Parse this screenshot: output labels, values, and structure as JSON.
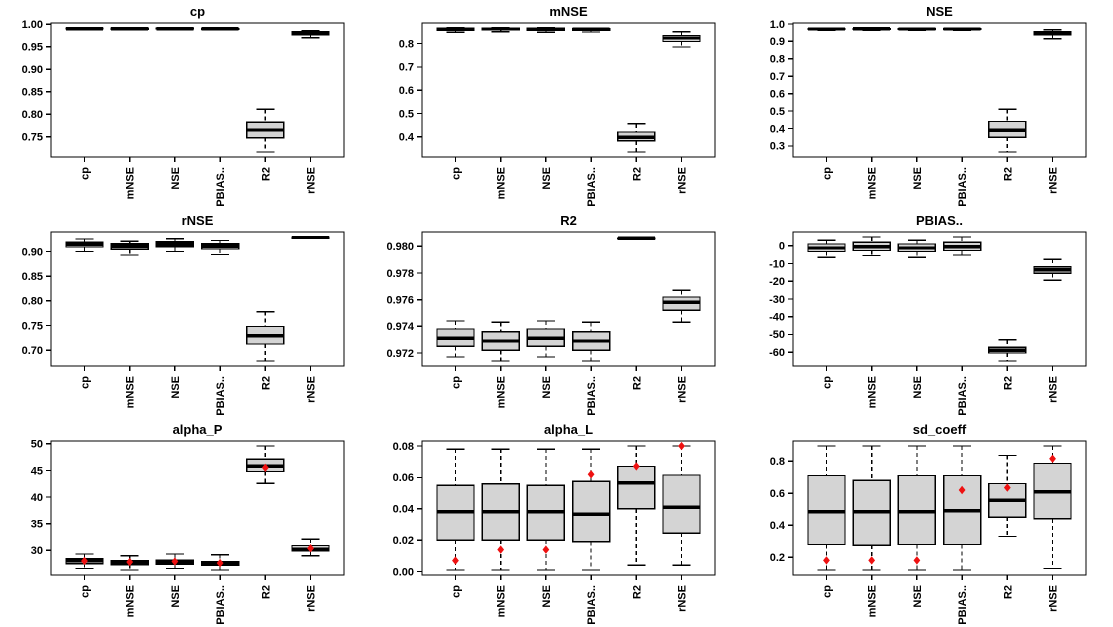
{
  "colors": {
    "background": "#ffffff",
    "box_fill": "#d4d4d4",
    "box_border": "#000000",
    "median": "#000000",
    "whisker": "#000000",
    "mean_marker": "#ee1111"
  },
  "layout_hints": {
    "grid": "3x3",
    "x_labels_rotated_90": true,
    "whisker_style": "dashed-with-caps",
    "mean_marker_shape": "filled-diamond"
  },
  "chart_data": [
    {
      "type": "boxplot",
      "title": "cp",
      "categories": [
        "cp",
        "mNSE",
        "NSE",
        "PBIAS..",
        "R2",
        "rNSE"
      ],
      "ylim": [
        0.705,
        1.0025
      ],
      "yticks": [
        {
          "value": 0.75,
          "label": "0.75"
        },
        {
          "value": 0.8,
          "label": "0.80"
        },
        {
          "value": 0.85,
          "label": "0.85"
        },
        {
          "value": 0.9,
          "label": "0.90"
        },
        {
          "value": 0.95,
          "label": "0.95"
        },
        {
          "value": 1.0,
          "label": "1.00"
        }
      ],
      "boxes": [
        {
          "low": 0.9875,
          "q1": 0.989,
          "med": 0.99,
          "q3": 0.991,
          "high": 0.992
        },
        {
          "low": 0.987,
          "q1": 0.9885,
          "med": 0.99,
          "q3": 0.991,
          "high": 0.992
        },
        {
          "low": 0.9875,
          "q1": 0.989,
          "med": 0.99,
          "q3": 0.991,
          "high": 0.992
        },
        {
          "low": 0.9875,
          "q1": 0.9885,
          "med": 0.9895,
          "q3": 0.9905,
          "high": 0.9915
        },
        {
          "low": 0.716,
          "q1": 0.748,
          "med": 0.765,
          "q3": 0.782,
          "high": 0.811
        },
        {
          "low": 0.97,
          "q1": 0.9765,
          "med": 0.98,
          "q3": 0.9835,
          "high": 0.986
        }
      ]
    },
    {
      "type": "boxplot",
      "title": "mNSE",
      "categories": [
        "cp",
        "mNSE",
        "NSE",
        "PBIAS..",
        "R2",
        "rNSE"
      ],
      "ylim": [
        0.3137,
        0.8883
      ],
      "yticks": [
        {
          "value": 0.4,
          "label": "0.4"
        },
        {
          "value": 0.5,
          "label": "0.5"
        },
        {
          "value": 0.6,
          "label": "0.6"
        },
        {
          "value": 0.7,
          "label": "0.7"
        },
        {
          "value": 0.8,
          "label": "0.8"
        }
      ],
      "boxes": [
        {
          "low": 0.849,
          "q1": 0.857,
          "med": 0.862,
          "q3": 0.8655,
          "high": 0.868
        },
        {
          "low": 0.851,
          "q1": 0.858,
          "med": 0.8625,
          "q3": 0.866,
          "high": 0.868
        },
        {
          "low": 0.849,
          "q1": 0.857,
          "med": 0.862,
          "q3": 0.8655,
          "high": 0.868
        },
        {
          "low": 0.85,
          "q1": 0.857,
          "med": 0.861,
          "q3": 0.865,
          "high": 0.867
        },
        {
          "low": 0.335,
          "q1": 0.383,
          "med": 0.398,
          "q3": 0.421,
          "high": 0.456
        },
        {
          "low": 0.785,
          "q1": 0.809,
          "med": 0.824,
          "q3": 0.835,
          "high": 0.851
        }
      ]
    },
    {
      "type": "boxplot",
      "title": "NSE",
      "categories": [
        "cp",
        "mNSE",
        "NSE",
        "PBIAS..",
        "R2",
        "rNSE"
      ],
      "ylim": [
        0.2365,
        1.0055
      ],
      "yticks": [
        {
          "value": 0.3,
          "label": "0.3"
        },
        {
          "value": 0.4,
          "label": "0.4"
        },
        {
          "value": 0.5,
          "label": "0.5"
        },
        {
          "value": 0.6,
          "label": "0.6"
        },
        {
          "value": 0.7,
          "label": "0.7"
        },
        {
          "value": 0.8,
          "label": "0.8"
        },
        {
          "value": 0.9,
          "label": "0.9"
        },
        {
          "value": 1.0,
          "label": "1.0"
        }
      ],
      "boxes": [
        {
          "low": 0.962,
          "q1": 0.968,
          "med": 0.971,
          "q3": 0.974,
          "high": 0.977
        },
        {
          "low": 0.963,
          "q1": 0.9685,
          "med": 0.9715,
          "q3": 0.9745,
          "high": 0.977
        },
        {
          "low": 0.962,
          "q1": 0.968,
          "med": 0.971,
          "q3": 0.974,
          "high": 0.977
        },
        {
          "low": 0.963,
          "q1": 0.968,
          "med": 0.971,
          "q3": 0.974,
          "high": 0.9765
        },
        {
          "low": 0.265,
          "q1": 0.35,
          "med": 0.39,
          "q3": 0.44,
          "high": 0.51
        },
        {
          "low": 0.915,
          "q1": 0.937,
          "med": 0.948,
          "q3": 0.955,
          "high": 0.966
        }
      ]
    },
    {
      "type": "boxplot",
      "title": "rNSE",
      "categories": [
        "cp",
        "mNSE",
        "NSE",
        "PBIAS..",
        "R2",
        "rNSE"
      ],
      "ylim": [
        0.6679,
        0.9396
      ],
      "yticks": [
        {
          "value": 0.7,
          "label": "0.70"
        },
        {
          "value": 0.75,
          "label": "0.75"
        },
        {
          "value": 0.8,
          "label": "0.80"
        },
        {
          "value": 0.85,
          "label": "0.85"
        },
        {
          "value": 0.9,
          "label": "0.90"
        }
      ],
      "boxes": [
        {
          "low": 0.9,
          "q1": 0.909,
          "med": 0.9145,
          "q3": 0.919,
          "high": 0.9255
        },
        {
          "low": 0.893,
          "q1": 0.9045,
          "med": 0.9105,
          "q3": 0.916,
          "high": 0.921
        },
        {
          "low": 0.9,
          "q1": 0.9095,
          "med": 0.915,
          "q3": 0.92,
          "high": 0.926
        },
        {
          "low": 0.894,
          "q1": 0.905,
          "med": 0.911,
          "q3": 0.9155,
          "high": 0.9225
        },
        {
          "low": 0.678,
          "q1": 0.7125,
          "med": 0.729,
          "q3": 0.748,
          "high": 0.778
        },
        {
          "low": 0.9275,
          "q1": 0.928,
          "med": 0.9285,
          "q3": 0.929,
          "high": 0.9295
        }
      ]
    },
    {
      "type": "boxplot",
      "title": "R2",
      "categories": [
        "cp",
        "mNSE",
        "NSE",
        "PBIAS..",
        "R2",
        "rNSE"
      ],
      "ylim": [
        0.97103,
        0.98107
      ],
      "yticks": [
        {
          "value": 0.972,
          "label": "0.972"
        },
        {
          "value": 0.974,
          "label": "0.974"
        },
        {
          "value": 0.976,
          "label": "0.976"
        },
        {
          "value": 0.978,
          "label": "0.978"
        },
        {
          "value": 0.98,
          "label": "0.980"
        }
      ],
      "boxes": [
        {
          "low": 0.9717,
          "q1": 0.9725,
          "med": 0.9731,
          "q3": 0.9738,
          "high": 0.9744
        },
        {
          "low": 0.9714,
          "q1": 0.9722,
          "med": 0.9729,
          "q3": 0.9736,
          "high": 0.9743
        },
        {
          "low": 0.9717,
          "q1": 0.9725,
          "med": 0.9731,
          "q3": 0.9738,
          "high": 0.9744
        },
        {
          "low": 0.9714,
          "q1": 0.9722,
          "med": 0.9729,
          "q3": 0.9736,
          "high": 0.9743
        },
        {
          "low": 0.98055,
          "q1": 0.98058,
          "med": 0.9806,
          "q3": 0.98062,
          "high": 0.98065
        },
        {
          "low": 0.9743,
          "q1": 0.9752,
          "med": 0.9758,
          "q3": 0.9762,
          "high": 0.9767
        }
      ]
    },
    {
      "type": "boxplot",
      "title": "PBIAS..",
      "categories": [
        "cp",
        "mNSE",
        "NSE",
        "PBIAS..",
        "R2",
        "rNSE"
      ],
      "ylim": [
        -67.8,
        7.8
      ],
      "yticks": [
        {
          "value": 0,
          "label": "0"
        },
        {
          "value": -10,
          "label": "-10"
        },
        {
          "value": -20,
          "label": "-20"
        },
        {
          "value": -30,
          "label": "-30"
        },
        {
          "value": -40,
          "label": "-40"
        },
        {
          "value": -50,
          "label": "-50"
        },
        {
          "value": -60,
          "label": "-60"
        }
      ],
      "boxes": [
        {
          "low": -6.5,
          "q1": -3.2,
          "med": -1.2,
          "q3": 1.0,
          "high": 3.2
        },
        {
          "low": -5.5,
          "q1": -2.6,
          "med": -0.6,
          "q3": 2.0,
          "high": 5.0
        },
        {
          "low": -6.5,
          "q1": -3.2,
          "med": -1.2,
          "q3": 1.0,
          "high": 3.2
        },
        {
          "low": -5.2,
          "q1": -2.6,
          "med": -0.5,
          "q3": 2.0,
          "high": 5.0
        },
        {
          "low": -65.0,
          "q1": -60.5,
          "med": -59.0,
          "q3": -57.3,
          "high": -53.0
        },
        {
          "low": -19.5,
          "q1": -15.5,
          "med": -13.5,
          "q3": -11.8,
          "high": -7.5
        }
      ]
    },
    {
      "type": "boxplot",
      "title": "alpha_P",
      "categories": [
        "cp",
        "mNSE",
        "NSE",
        "PBIAS..",
        "R2",
        "rNSE"
      ],
      "ylim": [
        25.37,
        50.53
      ],
      "yticks": [
        {
          "value": 30,
          "label": "30"
        },
        {
          "value": 35,
          "label": "35"
        },
        {
          "value": 40,
          "label": "40"
        },
        {
          "value": 45,
          "label": "45"
        },
        {
          "value": 50,
          "label": "50"
        }
      ],
      "boxes": [
        {
          "low": 26.6,
          "q1": 27.5,
          "med": 28.0,
          "q3": 28.4,
          "high": 29.3,
          "mean": 28.0
        },
        {
          "low": 26.3,
          "q1": 27.3,
          "med": 27.7,
          "q3": 28.1,
          "high": 29.0,
          "mean": 27.8
        },
        {
          "low": 26.6,
          "q1": 27.4,
          "med": 27.8,
          "q3": 28.2,
          "high": 29.3,
          "mean": 27.9
        },
        {
          "low": 26.3,
          "q1": 27.2,
          "med": 27.6,
          "q3": 27.9,
          "high": 29.2,
          "mean": 27.6
        },
        {
          "low": 42.6,
          "q1": 44.8,
          "med": 45.8,
          "q3": 47.1,
          "high": 49.6,
          "mean": 45.5
        },
        {
          "low": 29.0,
          "q1": 29.9,
          "med": 30.2,
          "q3": 30.9,
          "high": 32.1,
          "mean": 30.4
        }
      ]
    },
    {
      "type": "boxplot",
      "title": "alpha_L",
      "categories": [
        "cp",
        "mNSE",
        "NSE",
        "PBIAS..",
        "R2",
        "rNSE"
      ],
      "ylim": [
        -0.0022,
        0.0832
      ],
      "yticks": [
        {
          "value": 0.0,
          "label": "0.00"
        },
        {
          "value": 0.02,
          "label": "0.02"
        },
        {
          "value": 0.04,
          "label": "0.04"
        },
        {
          "value": 0.06,
          "label": "0.06"
        },
        {
          "value": 0.08,
          "label": "0.08"
        }
      ],
      "boxes": [
        {
          "low": 0.001,
          "q1": 0.02,
          "med": 0.038,
          "q3": 0.055,
          "high": 0.078,
          "mean": 0.007
        },
        {
          "low": 0.001,
          "q1": 0.02,
          "med": 0.038,
          "q3": 0.056,
          "high": 0.078,
          "mean": 0.014
        },
        {
          "low": 0.001,
          "q1": 0.02,
          "med": 0.038,
          "q3": 0.055,
          "high": 0.078,
          "mean": 0.014
        },
        {
          "low": 0.001,
          "q1": 0.019,
          "med": 0.0365,
          "q3": 0.0575,
          "high": 0.078,
          "mean": 0.062
        },
        {
          "low": 0.004,
          "q1": 0.04,
          "med": 0.0565,
          "q3": 0.067,
          "high": 0.08,
          "mean": 0.067
        },
        {
          "low": 0.004,
          "q1": 0.0245,
          "med": 0.041,
          "q3": 0.0615,
          "high": 0.08,
          "mean": 0.08
        }
      ]
    },
    {
      "type": "boxplot",
      "title": "sd_coeff",
      "categories": [
        "cp",
        "mNSE",
        "NSE",
        "PBIAS..",
        "R2",
        "rNSE"
      ],
      "ylim": [
        0.089,
        0.926
      ],
      "yticks": [
        {
          "value": 0.2,
          "label": "0.2"
        },
        {
          "value": 0.4,
          "label": "0.4"
        },
        {
          "value": 0.6,
          "label": "0.6"
        },
        {
          "value": 0.8,
          "label": "0.8"
        }
      ],
      "boxes": [
        {
          "low": 0.12,
          "q1": 0.28,
          "med": 0.485,
          "q3": 0.71,
          "high": 0.895,
          "mean": 0.18
        },
        {
          "low": 0.12,
          "q1": 0.275,
          "med": 0.485,
          "q3": 0.68,
          "high": 0.895,
          "mean": 0.18
        },
        {
          "low": 0.12,
          "q1": 0.28,
          "med": 0.485,
          "q3": 0.71,
          "high": 0.895,
          "mean": 0.18
        },
        {
          "low": 0.12,
          "q1": 0.28,
          "med": 0.49,
          "q3": 0.71,
          "high": 0.895,
          "mean": 0.62
        },
        {
          "low": 0.33,
          "q1": 0.45,
          "med": 0.555,
          "q3": 0.66,
          "high": 0.835,
          "mean": 0.635
        },
        {
          "low": 0.13,
          "q1": 0.44,
          "med": 0.61,
          "q3": 0.785,
          "high": 0.895,
          "mean": 0.815
        }
      ]
    }
  ]
}
